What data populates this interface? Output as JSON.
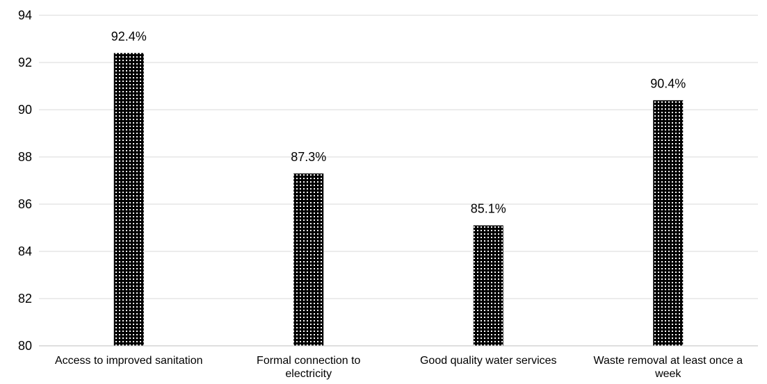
{
  "chart_data": {
    "type": "bar",
    "categories": [
      [
        "Access to improved sanitation"
      ],
      [
        "Formal connection to",
        "electricity"
      ],
      [
        "Good quality water services"
      ],
      [
        "Waste removal at least once a",
        "week"
      ]
    ],
    "values": [
      92.4,
      87.3,
      85.1,
      90.4
    ],
    "data_labels": [
      "92.4%",
      "87.3%",
      "85.1%",
      "90.4%"
    ],
    "ylim": [
      80,
      94
    ],
    "yticks": [
      80,
      82,
      84,
      86,
      88,
      90,
      92,
      94
    ],
    "title": "",
    "xlabel": "",
    "ylabel": "",
    "grid": true,
    "bar_fill": "#000000",
    "dot_color": "#ffffff",
    "grid_color": "#d9d9d9",
    "axis_color": "#bfbfbf"
  }
}
